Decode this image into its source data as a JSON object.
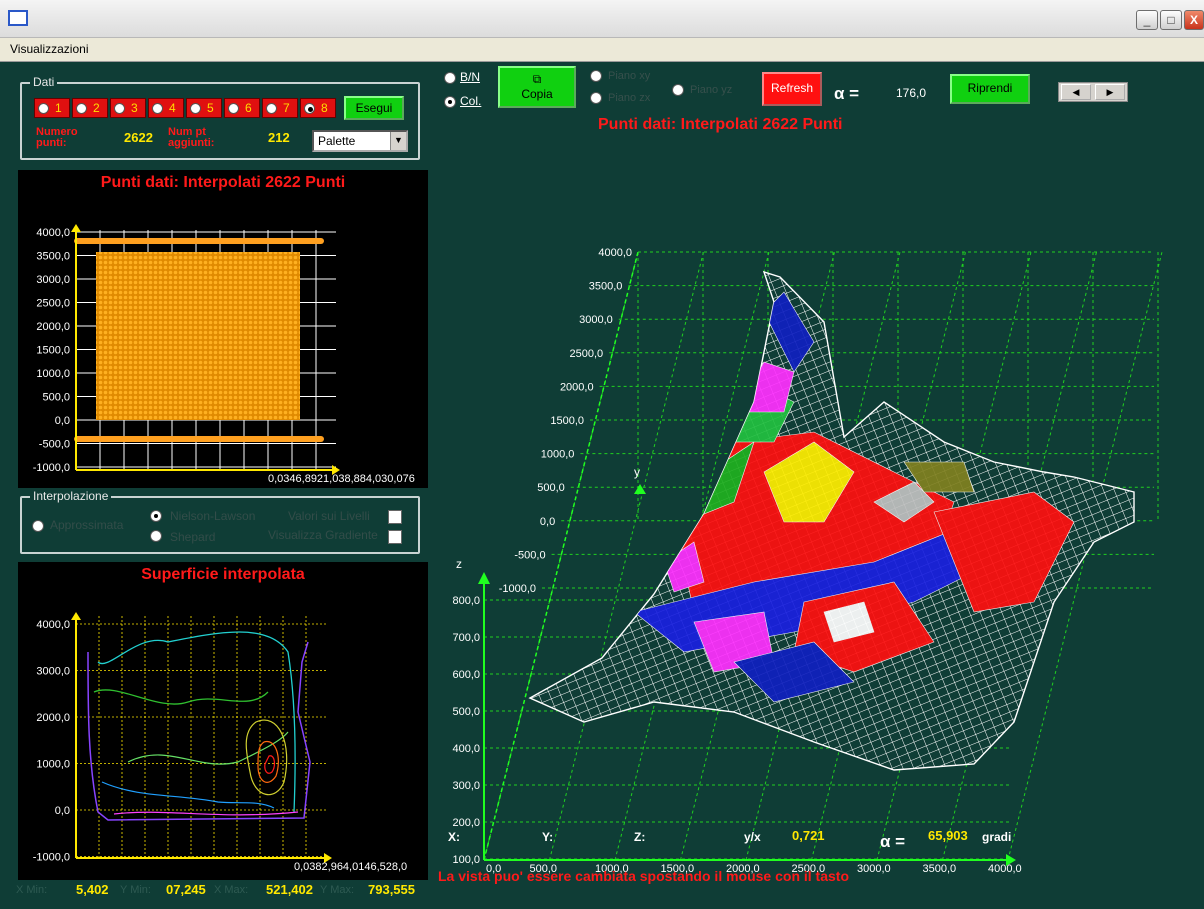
{
  "window": {
    "title": "",
    "min": "_",
    "max": "□",
    "close": "X"
  },
  "menu": {
    "view": "Visualizzazioni"
  },
  "dati": {
    "legend": "Dati",
    "radios": [
      "1",
      "2",
      "3",
      "4",
      "5",
      "6",
      "7",
      "8"
    ],
    "selected": 8,
    "run_button": "Esegui",
    "numero_punti_label": "Numero punti:",
    "numero_punti_value": "2622",
    "num_pt_label": "Num pt aggiunti:",
    "num_pt_value": "212",
    "palette_value": "Palette"
  },
  "scatter_plot": {
    "title": "Punti dati: Interpolati 2622 Punti",
    "y_ticks": [
      "4000,0",
      "3500,0",
      "3000,0",
      "2500,0",
      "2000,0",
      "1500,0",
      "1000,0",
      "500,0",
      "0,0",
      "-500,0",
      "-1000,0"
    ],
    "x_ticks_text": "0,0346,8921,038,884,030,076"
  },
  "interpolazione": {
    "legend": "Interpolazione",
    "approssimata": "Approssimata",
    "nielson": "Nielson-Lawson",
    "shepard": "Shepard",
    "valori": "Valori sui Livelli",
    "gradiente": "Visualizza Gradiente"
  },
  "contour_plot": {
    "title": "Superficie interpolata",
    "y_ticks": [
      "4000,0",
      "3000,0",
      "2000,0",
      "1000,0",
      "0,0",
      "-1000,0"
    ],
    "x_ticks_text": "0,0382,964,0146,528,0"
  },
  "stats": {
    "xmin_label": "X Min:",
    "xmin": "5,402",
    "ymin_label": "Y Min:",
    "ymin": "07,245",
    "xmax_label": "X Max:",
    "xmax": "521,402",
    "ymax_label": "Y Max:",
    "ymax": "793,555"
  },
  "toolbar": {
    "bn": "B/N",
    "col": "Col.",
    "copia": "Copia",
    "piano_xy": "Piano xy",
    "piano_zx": "Piano zx",
    "piano_yz": "Piano yz",
    "refresh": "Refresh",
    "alpha_symbol": "α =",
    "alpha_value": "176,0",
    "riprendi": "Riprendi"
  },
  "surface_plot": {
    "title": "Punti dati: Interpolati 2622 Punti",
    "back_axis_ticks": [
      "4000,0",
      "3500,0",
      "3000,0",
      "2500,0",
      "2000,0",
      "1500,0",
      "1000,0",
      "500,0",
      "0,0",
      "-500,0",
      "-1000,0"
    ],
    "z_ticks": [
      "800,0",
      "700,0",
      "600,0",
      "500,0",
      "400,0",
      "300,0",
      "200,0",
      "100,0"
    ],
    "x_ticks": [
      "0,0",
      "500,0",
      "1000,0",
      "1500,0",
      "2000,0",
      "2500,0",
      "3000,0",
      "3500,0",
      "4000,0"
    ],
    "y_axis_label": "y",
    "z_axis_label": "z"
  },
  "readout": {
    "x": "X:",
    "y": "Y:",
    "z": "Z:",
    "yx_label": "y/x",
    "yx_value": "0,721",
    "alpha_symbol": "α =",
    "alpha_value": "65,903",
    "gradi": "gradi"
  },
  "hint": "La vista puo' essere cambiata spostando il mouse con il tasto",
  "colors": {
    "background": "#0f3d36",
    "accent_red": "#ff1a1a",
    "value_yellow": "#ffe800",
    "button_green": "#10d010"
  }
}
